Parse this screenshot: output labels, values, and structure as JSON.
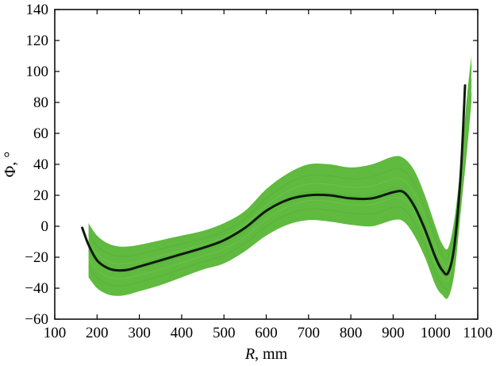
{
  "chart_data": {
    "type": "line",
    "title": "",
    "xlabel_var": "R",
    "xlabel_unit": ", mm",
    "ylabel": "Φ, °",
    "xlim": [
      100,
      1100
    ],
    "ylim": [
      -60,
      140
    ],
    "xticks": [
      "100",
      "200",
      "300",
      "400",
      "500",
      "600",
      "700",
      "800",
      "900",
      "1000",
      "1100"
    ],
    "yticks": [
      "−60",
      "−40",
      "−20",
      "0",
      "20",
      "40",
      "60",
      "80",
      "100",
      "120",
      "140"
    ],
    "grid": false,
    "legend": "none",
    "colors": {
      "band": "#5fba3f",
      "line": "#0d1a0d"
    },
    "series": [
      {
        "role": "mean",
        "x": [
          165,
          180,
          200,
          225,
          250,
          275,
          300,
          350,
          400,
          450,
          500,
          550,
          600,
          650,
          700,
          750,
          800,
          850,
          900,
          925,
          950,
          975,
          1000,
          1015,
          1030,
          1045,
          1060,
          1070
        ],
        "y": [
          -1,
          -12,
          -22,
          -27,
          -28.5,
          -28,
          -26,
          -22,
          -18,
          -14,
          -9,
          -1,
          10,
          17,
          20,
          20,
          18,
          18,
          22,
          22,
          13,
          -2,
          -20,
          -28,
          -30,
          -12,
          35,
          91
        ]
      },
      {
        "role": "band-upper",
        "x": [
          180,
          200,
          225,
          250,
          275,
          300,
          350,
          400,
          450,
          500,
          550,
          600,
          650,
          700,
          750,
          800,
          850,
          900,
          925,
          950,
          975,
          1000,
          1015,
          1030,
          1045,
          1060,
          1075,
          1085
        ],
        "y": [
          2,
          -6,
          -11,
          -13,
          -13,
          -12,
          -9,
          -6,
          -3,
          2,
          10,
          24,
          34,
          40,
          40,
          38,
          40,
          45,
          44,
          36,
          20,
          0,
          -11,
          -14,
          5,
          40,
          85,
          110
        ]
      },
      {
        "role": "band-lower",
        "x": [
          180,
          200,
          225,
          250,
          275,
          300,
          350,
          400,
          450,
          500,
          550,
          600,
          650,
          700,
          750,
          800,
          850,
          900,
          925,
          950,
          975,
          1000,
          1015,
          1030,
          1045,
          1060,
          1075,
          1085
        ],
        "y": [
          -33,
          -40,
          -44,
          -45,
          -44,
          -42,
          -38,
          -33,
          -28,
          -24,
          -16,
          -6,
          1,
          4,
          3,
          1,
          0,
          4,
          3,
          -6,
          -20,
          -38,
          -44,
          -46,
          -30,
          10,
          50,
          80
        ]
      }
    ]
  }
}
